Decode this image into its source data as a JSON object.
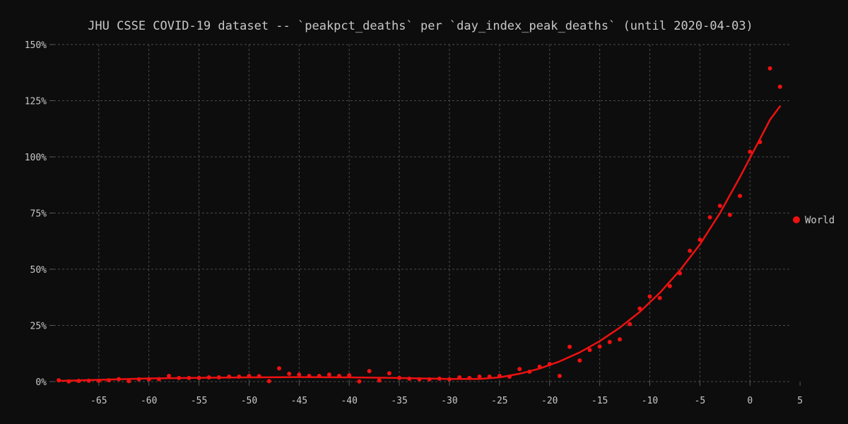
{
  "chart_data": {
    "type": "scatter",
    "title": "JHU CSSE COVID-19 dataset -- `peakpct_deaths` per `day_index_peak_deaths` (until 2020-04-03)",
    "xlabel": "",
    "ylabel": "",
    "xlim": [
      -69.5,
      4
    ],
    "ylim": [
      0,
      150
    ],
    "grid": true,
    "legend_position": "right",
    "x_ticks": [
      -65,
      -60,
      -55,
      -50,
      -45,
      -40,
      -35,
      -30,
      -25,
      -20,
      -15,
      -10,
      -5,
      0,
      5
    ],
    "x_tick_labels": [
      "-65",
      "-60",
      "-55",
      "-50",
      "-45",
      "-40",
      "-35",
      "-30",
      "-25",
      "-20",
      "-15",
      "-10",
      "-5",
      "0",
      "5"
    ],
    "y_ticks": [
      0,
      25,
      50,
      75,
      100,
      125,
      150
    ],
    "y_tick_labels": [
      "0%",
      "25%",
      "50%",
      "75%",
      "100%",
      "125%",
      "150%"
    ],
    "series": [
      {
        "name": "World",
        "color": "#ee1111",
        "points": [
          [
            -69,
            0.6
          ],
          [
            -68,
            0.1
          ],
          [
            -67,
            0.3
          ],
          [
            -66,
            0.4
          ],
          [
            -65,
            0.4
          ],
          [
            -64,
            0.6
          ],
          [
            -63,
            1.1
          ],
          [
            -62,
            0.2
          ],
          [
            -61,
            1.0
          ],
          [
            -60,
            1.0
          ],
          [
            -59,
            1.1
          ],
          [
            -58,
            2.5
          ],
          [
            -57,
            1.6
          ],
          [
            -56,
            1.6
          ],
          [
            -55,
            1.6
          ],
          [
            -54,
            1.9
          ],
          [
            -53,
            1.9
          ],
          [
            -52,
            2.2
          ],
          [
            -51,
            2.2
          ],
          [
            -50,
            2.5
          ],
          [
            -49,
            2.4
          ],
          [
            -48,
            0.2
          ],
          [
            -47,
            5.9
          ],
          [
            -46,
            3.5
          ],
          [
            -45,
            3.1
          ],
          [
            -44,
            2.5
          ],
          [
            -43,
            2.5
          ],
          [
            -42,
            3.1
          ],
          [
            -41,
            2.5
          ],
          [
            -40,
            2.8
          ],
          [
            -39,
            0.1
          ],
          [
            -38,
            4.7
          ],
          [
            -37,
            0.5
          ],
          [
            -36,
            3.7
          ],
          [
            -35,
            1.6
          ],
          [
            -34,
            1.3
          ],
          [
            -33,
            1.0
          ],
          [
            -32,
            1.0
          ],
          [
            -31,
            1.3
          ],
          [
            -30,
            1.0
          ],
          [
            -29,
            1.9
          ],
          [
            -28,
            1.6
          ],
          [
            -27,
            2.2
          ],
          [
            -26,
            2.2
          ],
          [
            -25,
            2.5
          ],
          [
            -24,
            2.2
          ],
          [
            -23,
            5.6
          ],
          [
            -22,
            4.4
          ],
          [
            -21,
            6.6
          ],
          [
            -20,
            7.8
          ],
          [
            -19,
            2.5
          ],
          [
            -18,
            15.5
          ],
          [
            -17,
            9.4
          ],
          [
            -16,
            14.1
          ],
          [
            -15,
            15.6
          ],
          [
            -14,
            17.6
          ],
          [
            -13,
            18.8
          ],
          [
            -12,
            25.6
          ],
          [
            -11,
            32.5
          ],
          [
            -10,
            37.9
          ],
          [
            -9,
            37.2
          ],
          [
            -8,
            42.5
          ],
          [
            -7,
            48.2
          ],
          [
            -6,
            58.2
          ],
          [
            -5,
            63.1
          ],
          [
            -4,
            73.1
          ],
          [
            -3,
            78.2
          ],
          [
            -2,
            74.2
          ],
          [
            -1,
            82.6
          ],
          [
            0,
            102.3
          ],
          [
            1,
            106.6
          ],
          [
            2,
            139.4
          ],
          [
            3,
            131.2
          ]
        ],
        "fit_line": [
          [
            -69,
            0.3
          ],
          [
            -65,
            0.8
          ],
          [
            -60,
            1.4
          ],
          [
            -55,
            1.7
          ],
          [
            -50,
            1.9
          ],
          [
            -45,
            2.0
          ],
          [
            -40,
            1.9
          ],
          [
            -35,
            1.6
          ],
          [
            -30,
            1.2
          ],
          [
            -27,
            1.2
          ],
          [
            -25,
            1.9
          ],
          [
            -23,
            3.5
          ],
          [
            -21,
            5.8
          ],
          [
            -19,
            9.0
          ],
          [
            -17,
            13.0
          ],
          [
            -15,
            18.0
          ],
          [
            -13,
            24.0
          ],
          [
            -11,
            31.0
          ],
          [
            -9,
            39.5
          ],
          [
            -7,
            49.5
          ],
          [
            -5,
            61.0
          ],
          [
            -3,
            75.0
          ],
          [
            -1,
            91.0
          ],
          [
            0,
            99.5
          ],
          [
            1,
            108.0
          ],
          [
            2,
            116.5
          ],
          [
            3,
            122.5
          ]
        ]
      }
    ]
  },
  "colors": {
    "background": "#0d0d0d",
    "text": "#c8c8c8",
    "grid": "#4a4a4a",
    "axis": "#5a5a5a"
  }
}
